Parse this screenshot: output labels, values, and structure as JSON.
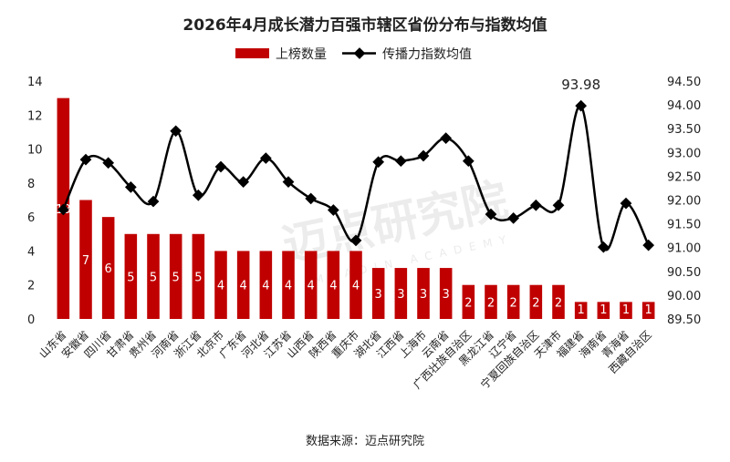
{
  "chart_data": {
    "type": "bar",
    "title": "2026年4月成长潜力百强市辖区省份分布与指数均值",
    "categories": [
      "山东省",
      "安徽省",
      "四川省",
      "甘肃省",
      "贵州省",
      "河南省",
      "浙江省",
      "北京市",
      "广东省",
      "河北省",
      "江苏省",
      "山西省",
      "陕西省",
      "重庆市",
      "湖北省",
      "江西省",
      "上海市",
      "云南省",
      "广西壮族自治区",
      "黑龙江省",
      "辽宁省",
      "宁夏回族自治区",
      "天津市",
      "福建省",
      "海南省",
      "青海省",
      "西藏自治区"
    ],
    "series": [
      {
        "name": "上榜数量",
        "type": "bar",
        "axis": "left",
        "color": "#c00000",
        "values": [
          13,
          7,
          6,
          5,
          5,
          5,
          5,
          4,
          4,
          4,
          4,
          4,
          4,
          4,
          3,
          3,
          3,
          3,
          2,
          2,
          2,
          2,
          2,
          1,
          1,
          1,
          1
        ]
      },
      {
        "name": "传播力指数均值",
        "type": "line",
        "axis": "right",
        "color": "#000000",
        "values": [
          91.8,
          92.85,
          92.78,
          92.27,
          91.97,
          93.45,
          92.1,
          92.7,
          92.38,
          92.88,
          92.38,
          92.03,
          91.79,
          91.15,
          92.8,
          92.82,
          92.93,
          93.3,
          92.82,
          91.7,
          91.62,
          91.89,
          91.89,
          93.98,
          91.01,
          91.93,
          91.05
        ]
      }
    ],
    "y_left": {
      "ylim": [
        0,
        14
      ],
      "ticks": [
        "0",
        "2",
        "4",
        "6",
        "8",
        "10",
        "12",
        "14"
      ]
    },
    "y_right": {
      "ylim": [
        89.5,
        94.5
      ],
      "ticks": [
        "89.50",
        "90.00",
        "90.50",
        "91.00",
        "91.50",
        "92.00",
        "92.50",
        "93.00",
        "93.50",
        "94.00",
        "94.50"
      ]
    },
    "annotations": [
      {
        "label": "93.98",
        "category": "福建省",
        "series": "传播力指数均值"
      }
    ],
    "legend_position": "top-center",
    "grid": false
  },
  "footer": {
    "source": "数据来源：迈点研究院"
  },
  "watermark": {
    "text": "迈点研究院",
    "subtext": "MEADIN ACADEMY"
  }
}
